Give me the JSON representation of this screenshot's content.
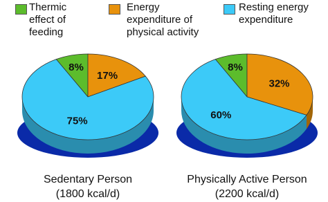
{
  "chart_data": [
    {
      "type": "pie",
      "title": "Sedentary Person",
      "subtitle": "(1800 kcal/d)",
      "categories": [
        "Thermic effect of feeding",
        "Energy expenditure of physical activity",
        "Resting energy expenditure"
      ],
      "colors": [
        "#5cbc2c",
        "#e8920c",
        "#3ccaf8"
      ],
      "values": [
        8,
        17,
        75
      ],
      "value_labels": [
        "8%",
        "17%",
        "75%"
      ]
    },
    {
      "type": "pie",
      "title": "Physically Active Person",
      "subtitle": "(2200 kcal/d)",
      "categories": [
        "Thermic effect of feeding",
        "Energy expenditure of physical activity",
        "Resting energy expenditure"
      ],
      "colors": [
        "#5cbc2c",
        "#e8920c",
        "#3ccaf8"
      ],
      "values": [
        8,
        32,
        60
      ],
      "value_labels": [
        "8%",
        "32%",
        "60%"
      ]
    }
  ]
}
